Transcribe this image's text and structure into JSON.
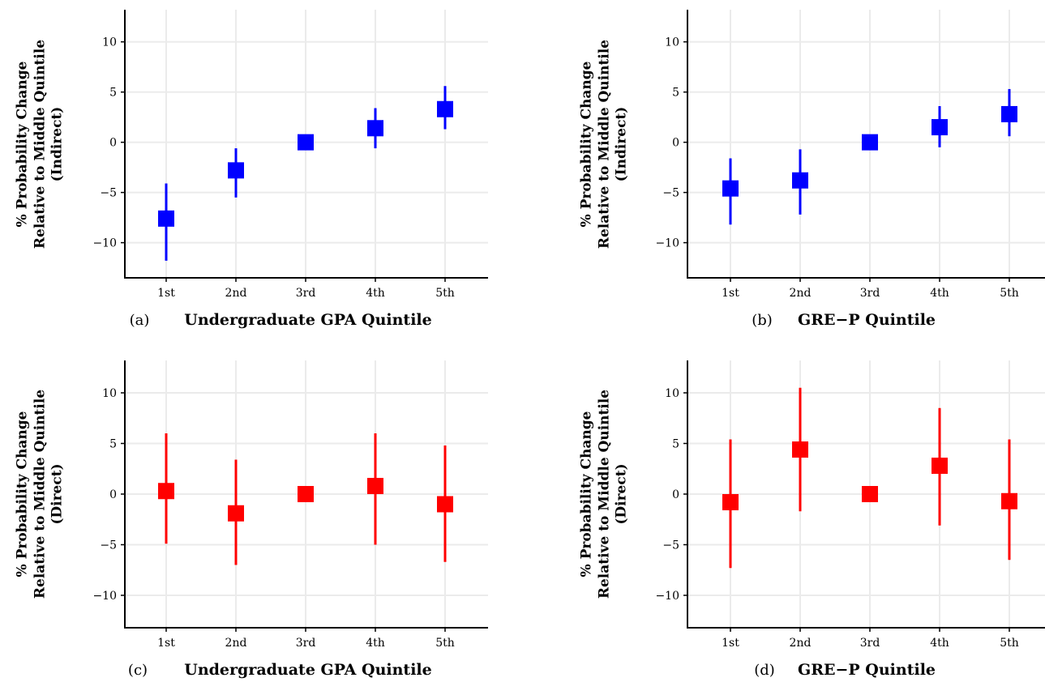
{
  "chart_data": [
    {
      "type": "errorbar",
      "panel": "(a)",
      "xlabel": "Undergraduate GPA Quintile",
      "ylabel": [
        "% Probability Change",
        "Relative to Middle Quintile",
        "(Indirect)"
      ],
      "categories": [
        "1st",
        "2nd",
        "3rd",
        "4th",
        "5th"
      ],
      "values": [
        -7.6,
        -2.8,
        0.0,
        1.4,
        3.3
      ],
      "lower": [
        -11.8,
        -5.5,
        0.0,
        -0.6,
        1.3
      ],
      "upper": [
        -4.1,
        -0.6,
        0.0,
        3.4,
        5.6
      ],
      "ylim": [
        -13.5,
        13.2
      ],
      "yticks": [
        -10,
        -5,
        0,
        5,
        10
      ],
      "ytick_labels": [
        "−10",
        "−5",
        "0",
        "5",
        "10"
      ],
      "grid": true,
      "color": "#0000ff"
    },
    {
      "type": "errorbar",
      "panel": "(b)",
      "xlabel": "GRE−P Quintile",
      "ylabel": [
        "% Probability Change",
        "Relative to Middle Quintile",
        "(Indirect)"
      ],
      "categories": [
        "1st",
        "2nd",
        "3rd",
        "4th",
        "5th"
      ],
      "values": [
        -4.6,
        -3.8,
        0.0,
        1.5,
        2.8
      ],
      "lower": [
        -8.2,
        -7.2,
        0.0,
        -0.5,
        0.6
      ],
      "upper": [
        -1.6,
        -0.7,
        0.0,
        3.6,
        5.3
      ],
      "ylim": [
        -13.5,
        13.2
      ],
      "yticks": [
        -10,
        -5,
        0,
        5,
        10
      ],
      "ytick_labels": [
        "−10",
        "−5",
        "0",
        "5",
        "10"
      ],
      "grid": true,
      "color": "#0000ff"
    },
    {
      "type": "errorbar",
      "panel": "(c)",
      "xlabel": "Undergraduate GPA Quintile",
      "ylabel": [
        "% Probability Change",
        "Relative to Middle Quintile",
        "(Direct)"
      ],
      "categories": [
        "1st",
        "2nd",
        "3rd",
        "4th",
        "5th"
      ],
      "values": [
        0.3,
        -1.9,
        0.0,
        0.8,
        -1.0
      ],
      "lower": [
        -4.9,
        -7.0,
        0.0,
        -5.0,
        -6.7
      ],
      "upper": [
        6.0,
        3.4,
        0.0,
        6.0,
        4.8
      ],
      "ylim": [
        -13.2,
        13.2
      ],
      "yticks": [
        -10,
        -5,
        0,
        5,
        10
      ],
      "ytick_labels": [
        "−10",
        "−5",
        "0",
        "5",
        "10"
      ],
      "grid": true,
      "color": "#ff0000"
    },
    {
      "type": "errorbar",
      "panel": "(d)",
      "xlabel": "GRE−P Quintile",
      "ylabel": [
        "% Probability Change",
        "Relative to Middle Quintile",
        "(Direct)"
      ],
      "categories": [
        "1st",
        "2nd",
        "3rd",
        "4th",
        "5th"
      ],
      "values": [
        -0.8,
        4.4,
        0.0,
        2.8,
        -0.7
      ],
      "lower": [
        -7.3,
        -1.7,
        0.0,
        -3.1,
        -6.5
      ],
      "upper": [
        5.4,
        10.5,
        0.0,
        8.5,
        5.4
      ],
      "ylim": [
        -13.2,
        13.2
      ],
      "yticks": [
        -10,
        -5,
        0,
        5,
        10
      ],
      "ytick_labels": [
        "−10",
        "−5",
        "0",
        "5",
        "10"
      ],
      "grid": true,
      "color": "#ff0000"
    }
  ]
}
